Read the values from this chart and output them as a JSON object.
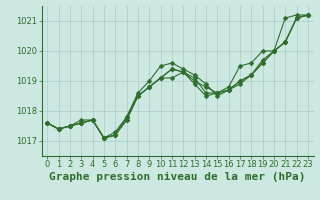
{
  "background_color": "#cce8e0",
  "grid_color": "#aacccc",
  "line_color": "#2d6e2d",
  "marker_color": "#2d6e2d",
  "title": "Graphe pression niveau de la mer (hPa)",
  "xlim": [
    -0.5,
    23.5
  ],
  "ylim": [
    1016.5,
    1021.5
  ],
  "yticks": [
    1017,
    1018,
    1019,
    1020,
    1021
  ],
  "xticks": [
    0,
    1,
    2,
    3,
    4,
    5,
    6,
    7,
    8,
    9,
    10,
    11,
    12,
    13,
    14,
    15,
    16,
    17,
    18,
    19,
    20,
    21,
    22,
    23
  ],
  "series": [
    [
      1017.6,
      1017.4,
      1017.5,
      1017.6,
      1017.7,
      1017.1,
      1017.2,
      1017.7,
      1018.5,
      1018.8,
      1019.1,
      1019.4,
      1019.3,
      1019.1,
      1018.6,
      1018.6,
      1018.7,
      1018.9,
      1019.2,
      1019.6,
      1020.0,
      1021.1,
      1021.2,
      1021.2
    ],
    [
      1017.6,
      1017.4,
      1017.5,
      1017.6,
      1017.7,
      1017.1,
      1017.2,
      1017.8,
      1018.6,
      1019.0,
      1019.5,
      1019.6,
      1019.4,
      1019.2,
      1018.9,
      1018.5,
      1018.7,
      1019.0,
      1019.2,
      1019.7,
      1020.0,
      1020.3,
      1021.1,
      1021.2
    ],
    [
      1017.6,
      1017.4,
      1017.5,
      1017.7,
      1017.7,
      1017.1,
      1017.3,
      1017.8,
      1018.5,
      1018.8,
      1019.1,
      1019.1,
      1019.3,
      1018.9,
      1018.5,
      1018.6,
      1018.8,
      1019.5,
      1019.6,
      1020.0,
      1020.0,
      1020.3,
      1021.1,
      1021.2
    ],
    [
      1017.6,
      1017.4,
      1017.5,
      1017.6,
      1017.7,
      1017.1,
      1017.2,
      1017.7,
      1018.5,
      1018.8,
      1019.1,
      1019.4,
      1019.3,
      1019.0,
      1018.8,
      1018.6,
      1018.7,
      1019.0,
      1019.2,
      1019.6,
      1020.0,
      1020.3,
      1021.1,
      1021.2
    ]
  ],
  "title_fontsize": 8,
  "tick_fontsize": 6,
  "title_color": "#2d6e2d",
  "tick_color": "#2d6e2d",
  "linewidth": 0.8,
  "markersize": 2.5,
  "figsize": [
    3.2,
    2.0
  ],
  "dpi": 100
}
